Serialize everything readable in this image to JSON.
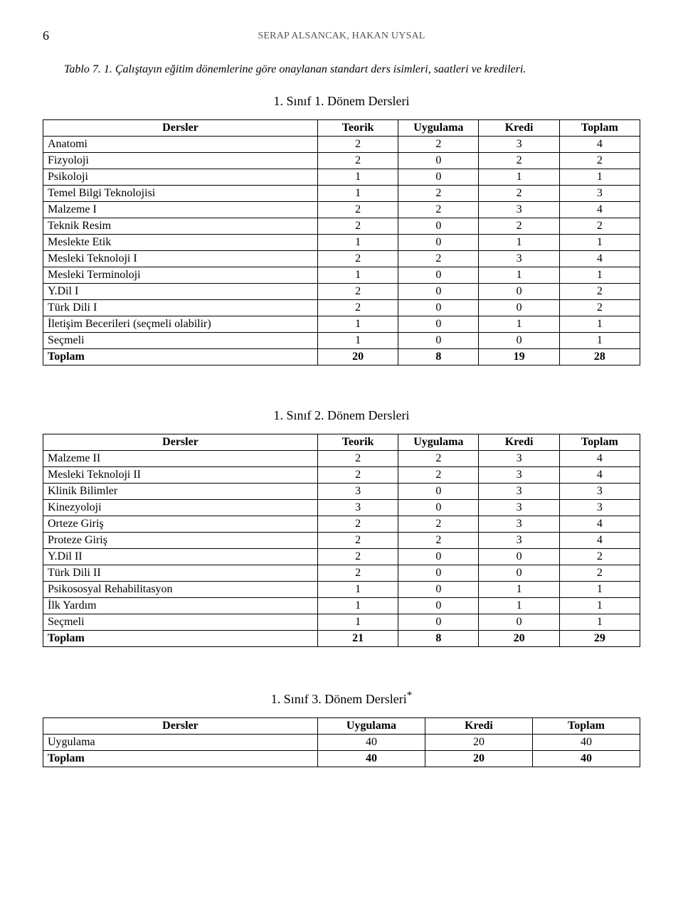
{
  "page_number": "6",
  "running_head": "SERAP ALSANCAK, HAKAN UYSAL",
  "caption": "Tablo 7. 1. Çalıştayın eğitim dönemlerine göre onaylanan standart ders isimleri, saatleri ve kredileri.",
  "section1": {
    "title": "1. Sınıf 1. Dönem Dersleri",
    "headers": [
      "Dersler",
      "Teorik",
      "Uygulama",
      "Kredi",
      "Toplam"
    ],
    "rows": [
      [
        "Anatomi",
        "2",
        "2",
        "3",
        "4"
      ],
      [
        "Fizyoloji",
        "2",
        "0",
        "2",
        "2"
      ],
      [
        "Psikoloji",
        "1",
        "0",
        "1",
        "1"
      ],
      [
        "Temel Bilgi Teknolojisi",
        "1",
        "2",
        "2",
        "3"
      ],
      [
        "Malzeme I",
        "2",
        "2",
        "3",
        "4"
      ],
      [
        "Teknik Resim",
        "2",
        "0",
        "2",
        "2"
      ],
      [
        "Meslekte Etik",
        "1",
        "0",
        "1",
        "1"
      ],
      [
        "Mesleki Teknoloji I",
        "2",
        "2",
        "3",
        "4"
      ],
      [
        "Mesleki Terminoloji",
        "1",
        "0",
        "1",
        "1"
      ],
      [
        "Y.Dil I",
        "2",
        "0",
        "0",
        "2"
      ],
      [
        "Türk Dili I",
        "2",
        "0",
        "0",
        "2"
      ],
      [
        "İletişim Becerileri (seçmeli olabilir)",
        "1",
        "0",
        "1",
        "1"
      ],
      [
        "Seçmeli",
        "1",
        "0",
        "0",
        "1"
      ]
    ],
    "total": [
      "Toplam",
      "20",
      "8",
      "19",
      "28"
    ]
  },
  "section2": {
    "title": "1.   Sınıf 2. Dönem Dersleri",
    "headers": [
      "Dersler",
      "Teorik",
      "Uygulama",
      "Kredi",
      "Toplam"
    ],
    "rows": [
      [
        "Malzeme II",
        "2",
        "2",
        "3",
        "4"
      ],
      [
        "Mesleki Teknoloji II",
        "2",
        "2",
        "3",
        "4"
      ],
      [
        "Klinik Bilimler",
        "3",
        "0",
        "3",
        "3"
      ],
      [
        "Kinezyoloji",
        "3",
        "0",
        "3",
        "3"
      ],
      [
        "Orteze Giriş",
        "2",
        "2",
        "3",
        "4"
      ],
      [
        "Proteze Giriş",
        "2",
        "2",
        "3",
        "4"
      ],
      [
        "Y.Dil II",
        "2",
        "0",
        "0",
        "2"
      ],
      [
        "Türk Dili II",
        "2",
        "0",
        "0",
        "2"
      ],
      [
        "Psikososyal Rehabilitasyon",
        "1",
        "0",
        "1",
        "1"
      ],
      [
        "İlk Yardım",
        "1",
        "0",
        "1",
        "1"
      ],
      [
        "Seçmeli",
        "1",
        "0",
        "0",
        "1"
      ]
    ],
    "total": [
      "Toplam",
      "21",
      "8",
      "20",
      "29"
    ]
  },
  "section3": {
    "title": "1. Sınıf 3. Dönem Dersleri",
    "title_suffix": "*",
    "headers": [
      "Dersler",
      "Uygulama",
      "Kredi",
      "Toplam"
    ],
    "rows": [
      [
        "Uygulama",
        "40",
        "20",
        "40"
      ]
    ],
    "total": [
      "Toplam",
      "40",
      "20",
      "40"
    ]
  }
}
